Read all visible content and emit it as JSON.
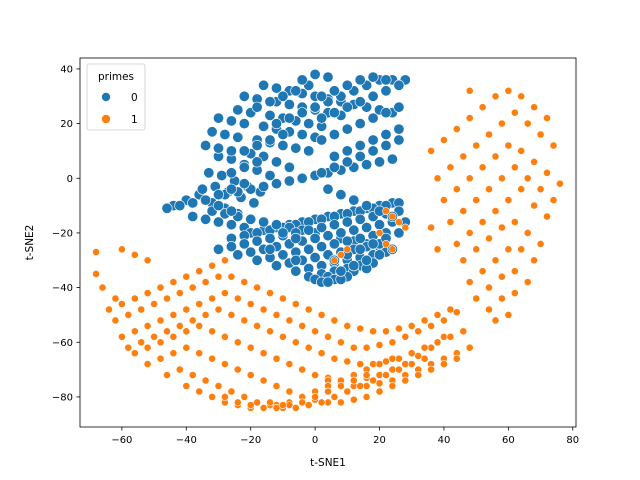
{
  "chart_data": {
    "type": "scatter",
    "xlabel": "t-SNE1",
    "ylabel": "t-SNE2",
    "xlim": [
      -73,
      81
    ],
    "ylim": [
      -91,
      44
    ],
    "xticks": [
      -60,
      -40,
      -20,
      0,
      20,
      40,
      60,
      80
    ],
    "yticks": [
      -80,
      -60,
      -40,
      -20,
      0,
      20,
      40
    ],
    "xtick_labels": [
      "−60",
      "−40",
      "−20",
      "0",
      "20",
      "40",
      "60",
      "80"
    ],
    "ytick_labels": [
      "−80",
      "−60",
      "−40",
      "−20",
      "0",
      "20",
      "40"
    ],
    "grid": false,
    "legend": {
      "title": "primes",
      "position": "top-left",
      "entries": [
        {
          "label": "0",
          "color": "#1f77b4"
        },
        {
          "label": "1",
          "color": "#ff7f0e"
        }
      ]
    },
    "series": [
      {
        "name": "0",
        "color": "#1f77b4",
        "x": [
          -44,
          -40,
          -36,
          -32,
          -28,
          -24,
          -38,
          -34,
          -30,
          -26,
          -22,
          -35,
          -31,
          -27,
          -23,
          -19,
          -33,
          -29,
          -25,
          -21,
          -17,
          -30,
          -26,
          -22,
          -18,
          -14,
          -34,
          -30,
          -26,
          -20,
          -16,
          -12,
          -8,
          -32,
          -28,
          -24,
          -18,
          -14,
          -10,
          -6,
          -2,
          -30,
          -26,
          -22,
          -16,
          -12,
          -8,
          -4,
          0,
          -24,
          -20,
          -14,
          -10,
          -6,
          -2,
          2,
          -22,
          -18,
          -12,
          -8,
          -4,
          0,
          4,
          8,
          -16,
          -12,
          -8,
          -4,
          0,
          4,
          8,
          12,
          16,
          20,
          24,
          -20,
          -16,
          -12,
          -8,
          -4,
          0,
          4,
          8,
          12,
          16,
          20,
          24,
          -26,
          -22,
          -18,
          -14,
          -10,
          -6,
          -2,
          2,
          6,
          10,
          14,
          18,
          22,
          26,
          -28,
          -24,
          -20,
          -16,
          -12,
          -8,
          -4,
          0,
          4,
          8,
          12,
          16,
          20,
          24,
          -32,
          -28,
          -24,
          -20,
          -16,
          -12,
          -8,
          -4,
          0,
          4,
          8,
          12,
          16,
          20,
          24,
          -30,
          -26,
          -22,
          -18,
          -14,
          -10,
          -6,
          -2,
          2,
          6,
          10,
          14,
          18,
          22,
          26,
          -24,
          -20,
          -16,
          -12,
          -8,
          -4,
          0,
          4,
          8,
          12,
          16,
          20,
          24,
          -18,
          -14,
          -10,
          -6,
          -2,
          2,
          6,
          10,
          14,
          18,
          22,
          -12,
          -8,
          -4,
          0,
          4,
          8,
          12,
          16,
          20,
          -6,
          -2,
          2,
          6,
          10,
          14,
          18,
          22,
          -2,
          2,
          6,
          10,
          14,
          18,
          0,
          4,
          8,
          12,
          16,
          2,
          6,
          10,
          4,
          8,
          -22,
          -18,
          -14,
          -10,
          -26,
          -22,
          -18,
          -30,
          -26,
          -22,
          -34,
          -30,
          -26,
          -18,
          -14,
          -10,
          -6,
          -2,
          -12,
          -8,
          -4,
          0,
          -4,
          0,
          4,
          2,
          6,
          10,
          14,
          18,
          22,
          26,
          6,
          10,
          14,
          18,
          22,
          26,
          2,
          6,
          10,
          14,
          18,
          22,
          26,
          -2,
          2,
          6,
          10,
          14,
          18,
          22,
          26,
          0,
          4,
          8,
          12,
          16,
          20,
          24,
          28,
          2,
          6,
          10,
          14,
          18,
          22,
          26,
          4,
          8,
          12,
          16,
          20,
          24,
          28,
          6,
          10,
          14,
          18,
          22,
          26,
          8,
          12,
          16,
          20,
          24,
          -10,
          -6,
          -14,
          -10,
          -6,
          -38,
          -42,
          -46
        ],
        "y": [
          -10,
          -8,
          -6,
          -9,
          -11,
          -13,
          -14,
          -15,
          -16,
          -17,
          -18,
          -4,
          -3,
          -5,
          -7,
          -9,
          2,
          1,
          -1,
          -3,
          -5,
          8,
          7,
          5,
          3,
          1,
          12,
          11,
          10,
          9,
          8,
          6,
          4,
          17,
          16,
          15,
          14,
          13,
          12,
          11,
          10,
          22,
          21,
          20,
          19,
          18,
          17,
          16,
          15,
          25,
          24,
          23,
          22,
          21,
          20,
          19,
          30,
          29,
          28,
          27,
          26,
          25,
          24,
          23,
          34,
          33,
          32,
          31,
          30,
          29,
          28,
          27,
          26,
          25,
          24,
          -20,
          -19,
          -18,
          -17,
          -16,
          -15,
          -14,
          -13,
          -12,
          -11,
          -10,
          -9,
          -22,
          -21,
          -20,
          -19,
          -18,
          -17,
          -16,
          -15,
          -14,
          -13,
          -12,
          -11,
          -10,
          -9,
          -6,
          -5,
          -4,
          -3,
          -2,
          -1,
          0,
          1,
          2,
          3,
          4,
          5,
          6,
          7,
          -12,
          -13,
          -14,
          -15,
          -16,
          -17,
          -18,
          -19,
          -20,
          -21,
          -22,
          -23,
          -24,
          -25,
          -26,
          -26,
          -25,
          -24,
          -23,
          -22,
          -21,
          -20,
          -19,
          -18,
          -17,
          -16,
          -15,
          -14,
          -13,
          -12,
          -28,
          -27,
          -26,
          -25,
          -24,
          -23,
          -22,
          -21,
          -20,
          -19,
          -18,
          -17,
          -16,
          -30,
          -29,
          -28,
          -27,
          -26,
          -25,
          -24,
          -23,
          -22,
          -21,
          -20,
          -32,
          -31,
          -30,
          -29,
          -28,
          -27,
          -26,
          -25,
          -24,
          -34,
          -33,
          -32,
          -31,
          -30,
          -29,
          -28,
          -27,
          -36,
          -35,
          -34,
          -33,
          -32,
          -31,
          -37,
          -36,
          -35,
          -34,
          -33,
          -38,
          -37,
          -36,
          -38,
          -37,
          10,
          12,
          14,
          16,
          2,
          4,
          6,
          -6,
          -4,
          -2,
          -8,
          -10,
          -12,
          26,
          28,
          30,
          32,
          34,
          20,
          22,
          24,
          26,
          36,
          38,
          37,
          2,
          4,
          6,
          8,
          10,
          12,
          14,
          8,
          10,
          12,
          14,
          16,
          18,
          14,
          16,
          18,
          20,
          22,
          24,
          26,
          20,
          22,
          24,
          26,
          28,
          30,
          32,
          34,
          26,
          28,
          30,
          32,
          34,
          36,
          36,
          36,
          30,
          32,
          34,
          36,
          37,
          36,
          34,
          -4,
          -6,
          -8,
          -10,
          -12,
          -14,
          -16,
          -30,
          -28,
          -26,
          -24,
          -22,
          -20,
          -34,
          -32,
          -30,
          -28,
          -26,
          -20,
          -22,
          -26,
          -28,
          -30,
          -9,
          -10,
          -11
        ]
      },
      {
        "name": "1",
        "color": "#ff7f0e",
        "x": [
          -68,
          -68,
          -66,
          -62,
          -60,
          -56,
          -52,
          -64,
          -60,
          -56,
          -52,
          -48,
          -44,
          -40,
          -36,
          -32,
          -28,
          -24,
          -20,
          -16,
          -12,
          -8,
          -4,
          0,
          4,
          8,
          12,
          16,
          20,
          24,
          28,
          32,
          36,
          40,
          -62,
          -58,
          -54,
          -50,
          -46,
          -42,
          -38,
          -34,
          -30,
          -26,
          -22,
          -18,
          -14,
          -10,
          -6,
          -2,
          2,
          6,
          10,
          14,
          18,
          22,
          26,
          30,
          34,
          38,
          42,
          -60,
          -56,
          -52,
          -48,
          -44,
          -40,
          -36,
          -32,
          -28,
          -24,
          -20,
          -16,
          -12,
          -8,
          -4,
          0,
          4,
          8,
          12,
          16,
          20,
          24,
          28,
          32,
          36,
          40,
          44,
          -58,
          -54,
          -50,
          -46,
          -42,
          -38,
          -34,
          -30,
          -26,
          -22,
          -18,
          -14,
          -10,
          -6,
          -2,
          2,
          6,
          10,
          14,
          18,
          22,
          26,
          30,
          34,
          38,
          42,
          46,
          -56,
          -52,
          -48,
          -44,
          -40,
          -36,
          -32,
          -28,
          -24,
          -20,
          -16,
          -12,
          -8,
          -4,
          0,
          4,
          8,
          12,
          16,
          20,
          24,
          28,
          32,
          36,
          40,
          44,
          48,
          -52,
          -48,
          -44,
          -40,
          -36,
          -32,
          -28,
          -24,
          -20,
          -16,
          -12,
          -8,
          -4,
          0,
          4,
          8,
          12,
          16,
          20,
          24,
          28,
          32,
          36,
          40,
          44,
          -46,
          -42,
          -38,
          -34,
          -30,
          -26,
          -22,
          -18,
          -14,
          -10,
          -6,
          -2,
          2,
          6,
          10,
          14,
          18,
          22,
          26,
          30,
          34,
          -40,
          -36,
          -32,
          -28,
          -24,
          -20,
          -16,
          -12,
          -8,
          -4,
          0,
          4,
          8,
          12,
          16,
          20,
          24,
          -28,
          -24,
          -20,
          -16,
          -12,
          -8,
          -4,
          0,
          4,
          8,
          12,
          16,
          -14,
          -10,
          -6,
          -2,
          2,
          6,
          10,
          36,
          40,
          44,
          48,
          52,
          56,
          60,
          64,
          68,
          72,
          38,
          42,
          46,
          50,
          54,
          58,
          62,
          66,
          70,
          74,
          40,
          44,
          48,
          52,
          56,
          60,
          64,
          68,
          72,
          76,
          42,
          46,
          50,
          54,
          58,
          62,
          66,
          70,
          74,
          44,
          48,
          52,
          56,
          60,
          64,
          68,
          72,
          46,
          50,
          54,
          58,
          62,
          66,
          70,
          48,
          52,
          56,
          60,
          64,
          68,
          50,
          54,
          58,
          62,
          66,
          54,
          58,
          62,
          56,
          60,
          48,
          28,
          22,
          24,
          26,
          20,
          22,
          24,
          8,
          6,
          10,
          38,
          36
        ],
        "y": [
          -27,
          -35,
          -40,
          -44,
          -26,
          -28,
          -30,
          -48,
          -46,
          -44,
          -42,
          -40,
          -38,
          -36,
          -34,
          -32,
          -30,
          -60,
          -62,
          -64,
          -66,
          -68,
          -70,
          -72,
          -73,
          -74,
          -74,
          -73,
          -72,
          -70,
          -68,
          -65,
          -62,
          -58,
          -52,
          -50,
          -48,
          -46,
          -44,
          -42,
          -40,
          -38,
          -36,
          -36,
          -38,
          -40,
          -42,
          -44,
          -46,
          -48,
          -50,
          -52,
          -54,
          -55,
          -56,
          -56,
          -55,
          -54,
          -52,
          -50,
          -48,
          -58,
          -56,
          -54,
          -52,
          -50,
          -48,
          -46,
          -44,
          -42,
          -44,
          -46,
          -48,
          -50,
          -52,
          -54,
          -56,
          -58,
          -60,
          -62,
          -62,
          -61,
          -60,
          -58,
          -56,
          -54,
          -52,
          -49,
          -62,
          -60,
          -58,
          -56,
          -54,
          -52,
          -50,
          -48,
          -50,
          -52,
          -54,
          -56,
          -58,
          -60,
          -62,
          -64,
          -66,
          -67,
          -68,
          -68,
          -67,
          -66,
          -64,
          -62,
          -60,
          -58,
          -56,
          -64,
          -62,
          -60,
          -58,
          -56,
          -54,
          -56,
          -58,
          -60,
          -62,
          -64,
          -66,
          -68,
          -70,
          -72,
          -74,
          -75,
          -76,
          -76,
          -75,
          -74,
          -72,
          -70,
          -68,
          -66,
          -64,
          -62,
          -68,
          -66,
          -64,
          -62,
          -64,
          -66,
          -68,
          -70,
          -72,
          -74,
          -76,
          -78,
          -80,
          -81,
          -82,
          -82,
          -81,
          -80,
          -78,
          -76,
          -74,
          -72,
          -70,
          -68,
          -66,
          -72,
          -70,
          -72,
          -74,
          -76,
          -78,
          -80,
          -82,
          -83,
          -84,
          -84,
          -83,
          -82,
          -80,
          -78,
          -76,
          -74,
          -72,
          -70,
          -68,
          -66,
          -76,
          -78,
          -80,
          -82,
          -83,
          -84,
          -84,
          -83,
          -82,
          -80,
          -78,
          -76,
          -74,
          -72,
          -70,
          -68,
          -66,
          -80,
          -82,
          -83,
          -84,
          -84,
          -83,
          -82,
          -80,
          -78,
          -76,
          -74,
          -72,
          -82,
          -83,
          -84,
          -83,
          -82,
          -80,
          -78,
          10,
          14,
          18,
          22,
          26,
          30,
          32,
          30,
          26,
          22,
          0,
          4,
          8,
          12,
          16,
          20,
          24,
          20,
          16,
          12,
          -8,
          -4,
          0,
          4,
          8,
          12,
          10,
          6,
          2,
          -2,
          -16,
          -12,
          -8,
          -4,
          0,
          4,
          0,
          -4,
          -8,
          -24,
          -20,
          -16,
          -12,
          -8,
          -4,
          -10,
          -14,
          -30,
          -26,
          -22,
          -18,
          -16,
          -20,
          -24,
          -38,
          -34,
          -30,
          -26,
          -26,
          -30,
          -44,
          -40,
          -36,
          -34,
          -38,
          -48,
          -44,
          -42,
          -52,
          -50,
          32,
          -18,
          -12,
          -14,
          -16,
          -20,
          -24,
          -26,
          -28,
          -30,
          -26,
          -26,
          -18
        ],
        "clusters_note": ""
      }
    ]
  }
}
